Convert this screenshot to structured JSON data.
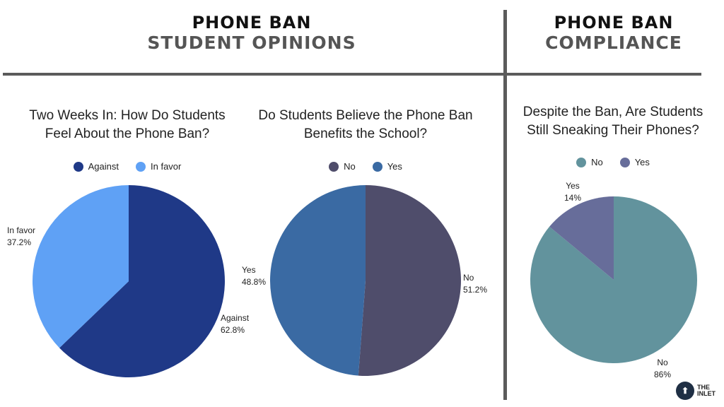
{
  "header_left": {
    "line1": "PHONE BAN",
    "line2": "STUDENT OPINIONS"
  },
  "header_right": {
    "line1": "PHONE BAN",
    "line2": "COMPLIANCE"
  },
  "logo": {
    "line1": "THE",
    "line2": "INLET"
  },
  "chart_data": [
    {
      "type": "pie",
      "title": [
        "Two Weeks In: How Do Students",
        "Feel About the Phone Ban?"
      ],
      "legend_position": "top",
      "slices": [
        {
          "label": "Against",
          "value": 62.8,
          "display": "62.8%",
          "color": "#1f3987"
        },
        {
          "label": "In favor",
          "value": 37.2,
          "display": "37.2%",
          "color": "#5fa1f5"
        }
      ]
    },
    {
      "type": "pie",
      "title": [
        "Do Students Believe the Phone Ban",
        "Benefits the School?"
      ],
      "legend_position": "top",
      "slices": [
        {
          "label": "No",
          "value": 51.2,
          "display": "51.2%",
          "color": "#4f4d6b"
        },
        {
          "label": "Yes",
          "value": 48.8,
          "display": "48.8%",
          "color": "#3a6aa3"
        }
      ]
    },
    {
      "type": "pie",
      "title": [
        "Despite the Ban, Are Students",
        "Still Sneaking Their Phones?"
      ],
      "legend_position": "top",
      "slices": [
        {
          "label": "No",
          "value": 86,
          "display": "86%",
          "color": "#62939d"
        },
        {
          "label": "Yes",
          "value": 14,
          "display": "14%",
          "color": "#676d9a"
        }
      ]
    }
  ]
}
